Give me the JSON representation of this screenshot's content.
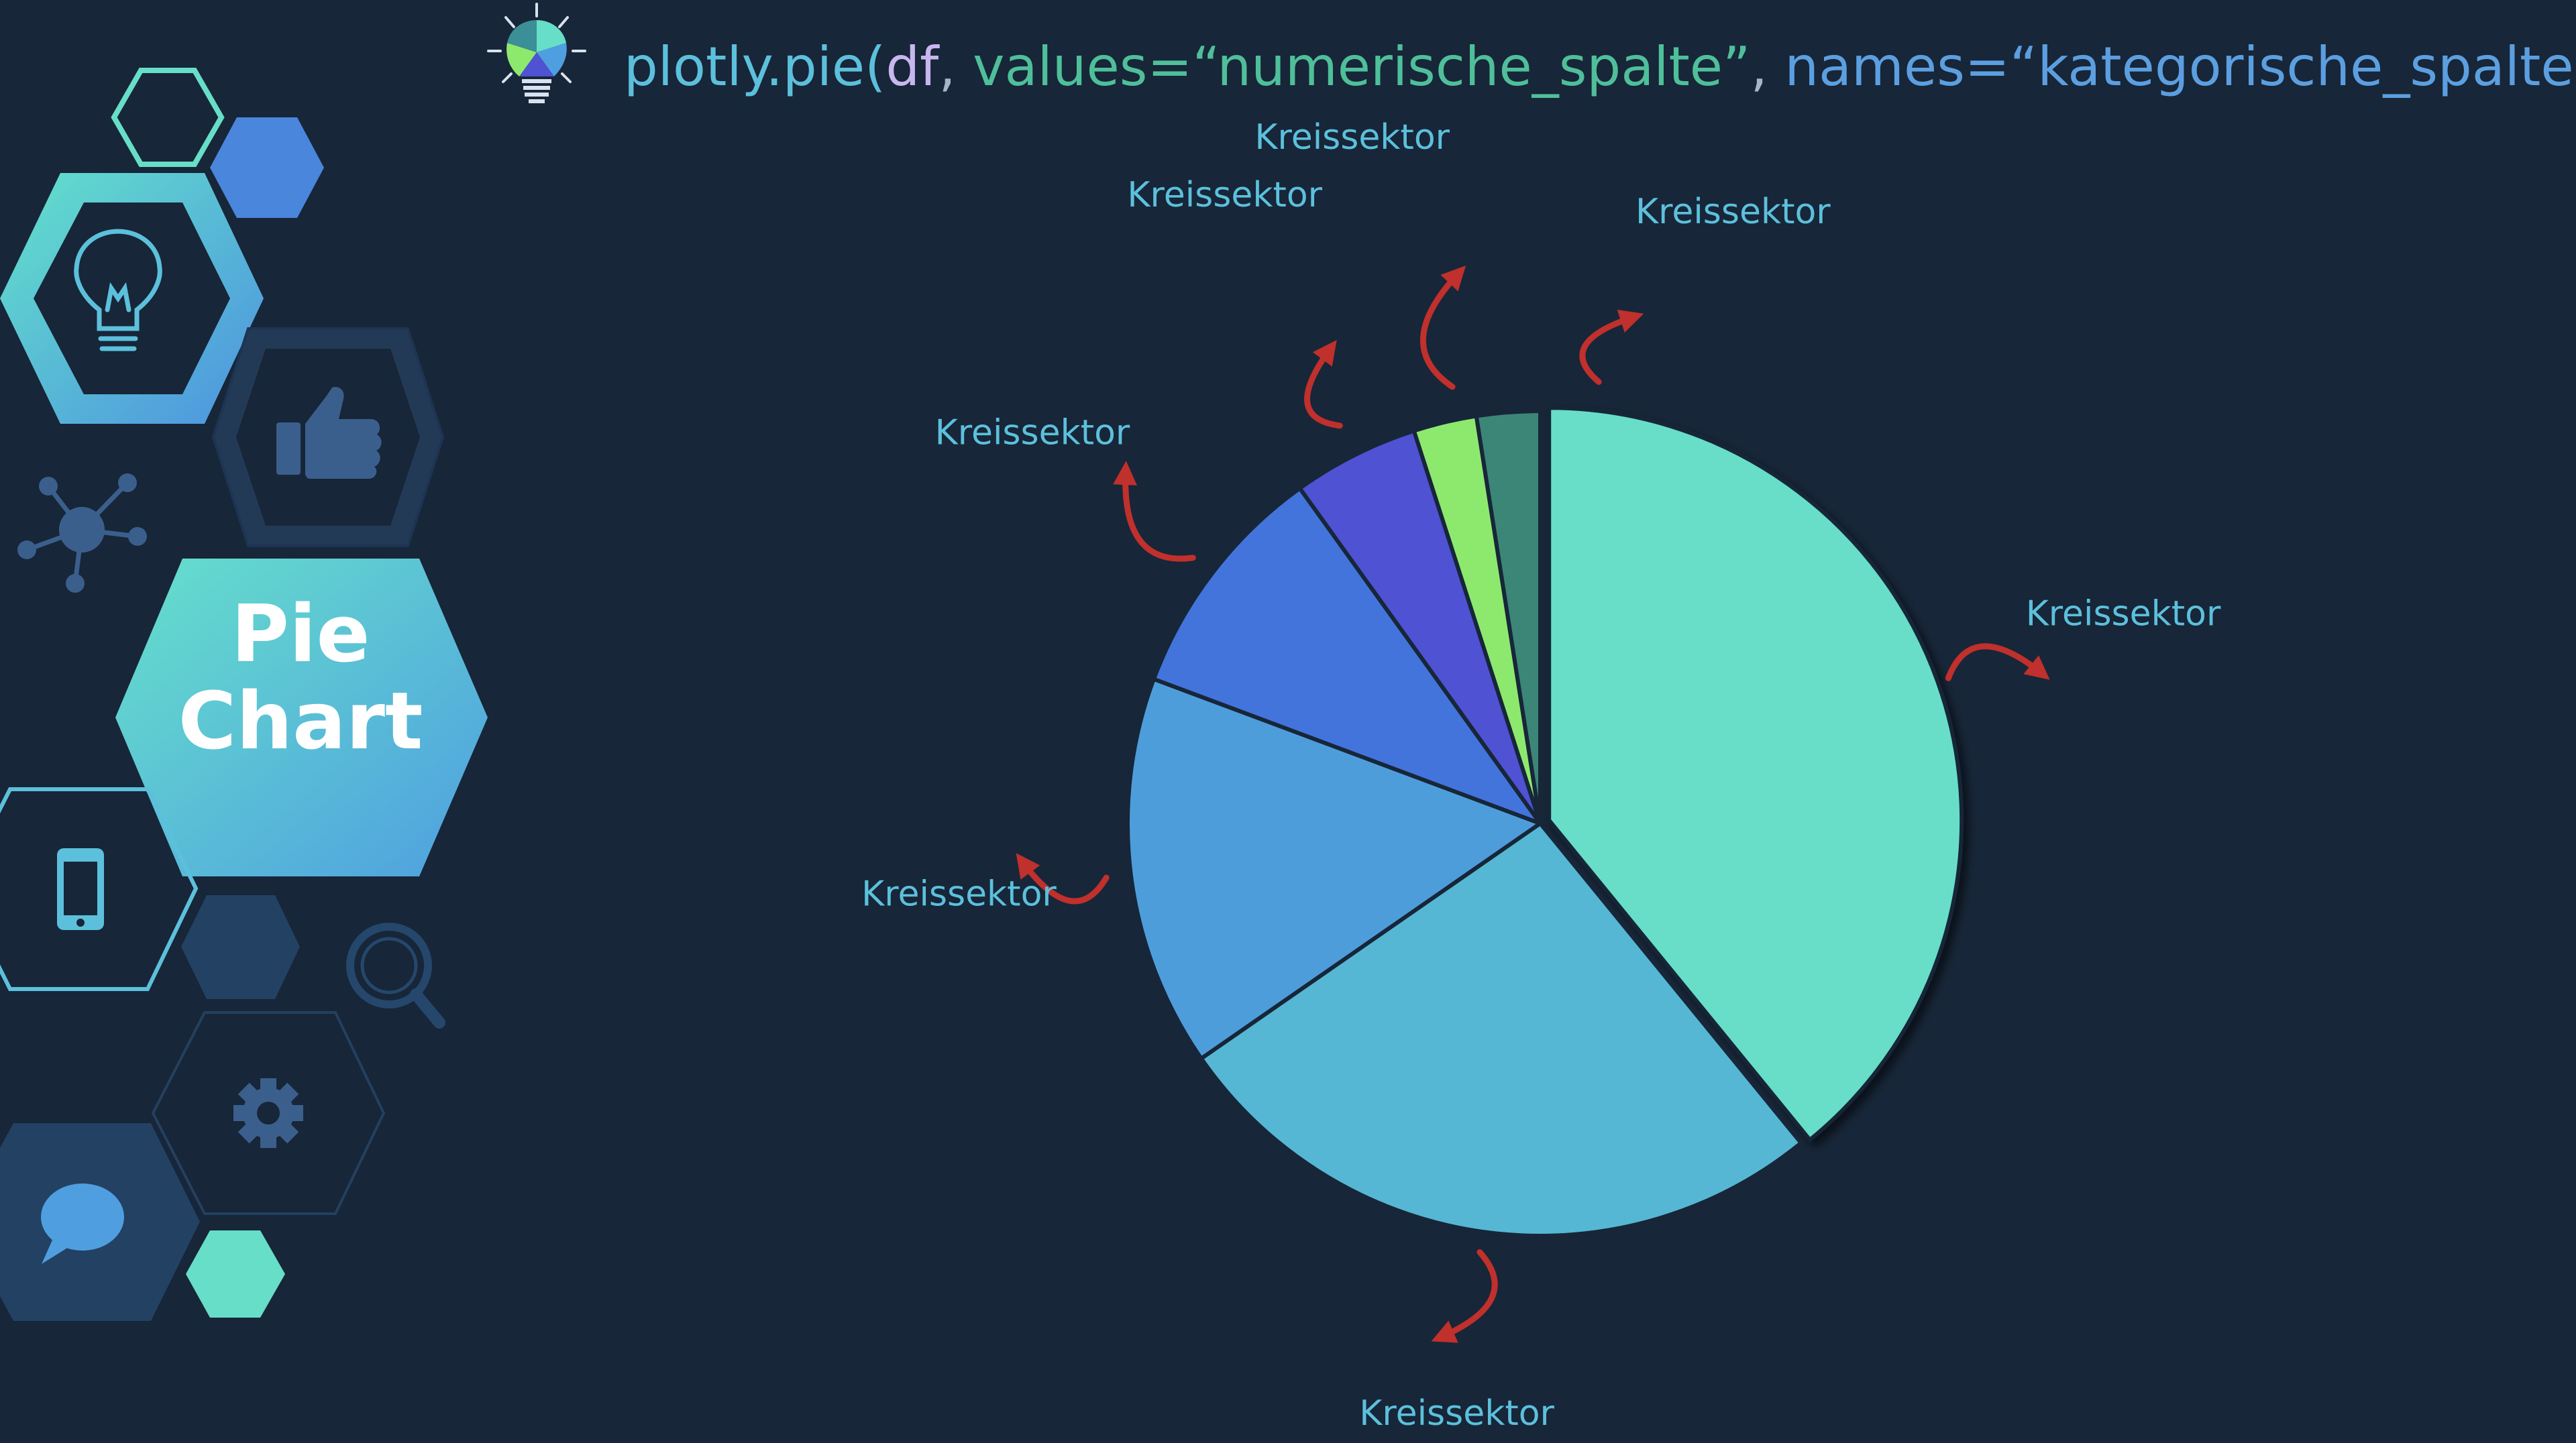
{
  "code": {
    "func": "plotly.pie(",
    "df": "df",
    "sep1": ", ",
    "values_kw": "values=“numerische_spalte”",
    "sep2": ", ",
    "names_kw": "names=“kategorische_spalte”)",
    "colors": {
      "func": "#5cc0dc",
      "df": "#c8b6ee",
      "values": "#4fbf9a",
      "punct": "#a9b4c8",
      "names": "#5c9fe0"
    }
  },
  "title": {
    "line1": "Pie",
    "line2": "Chart"
  },
  "icons": [
    "lightbulb-icon",
    "thumbs-up-icon",
    "network-icon",
    "smartphone-icon",
    "magnifier-icon",
    "gear-icon",
    "speech-bubble-icon"
  ],
  "colors": {
    "background": "#172638",
    "arrow": "#c0302c",
    "label": "#5cc0dc"
  },
  "chart_data": {
    "type": "pie",
    "categories": [
      "Kreissektor",
      "Kreissektor",
      "Kreissektor",
      "Kreissektor",
      "Kreissektor",
      "Kreissektor",
      "Kreissektor"
    ],
    "values": [
      39.5,
      26.5,
      15.5,
      9.5,
      5.0,
      2.5,
      2.5
    ],
    "colors": [
      "#67dec8",
      "#55b7d4",
      "#4e9ddb",
      "#4374db",
      "#4e52d3",
      "#8de96e",
      "#3b8677"
    ],
    "exploded": [
      true,
      false,
      false,
      false,
      false,
      false,
      false
    ],
    "direction": "clockwise",
    "start_angle": "top",
    "labels": [
      "Kreissektor",
      "Kreissektor",
      "Kreissektor",
      "Kreissektor",
      "Kreissektor",
      "Kreissektor",
      "Kreissektor"
    ]
  }
}
